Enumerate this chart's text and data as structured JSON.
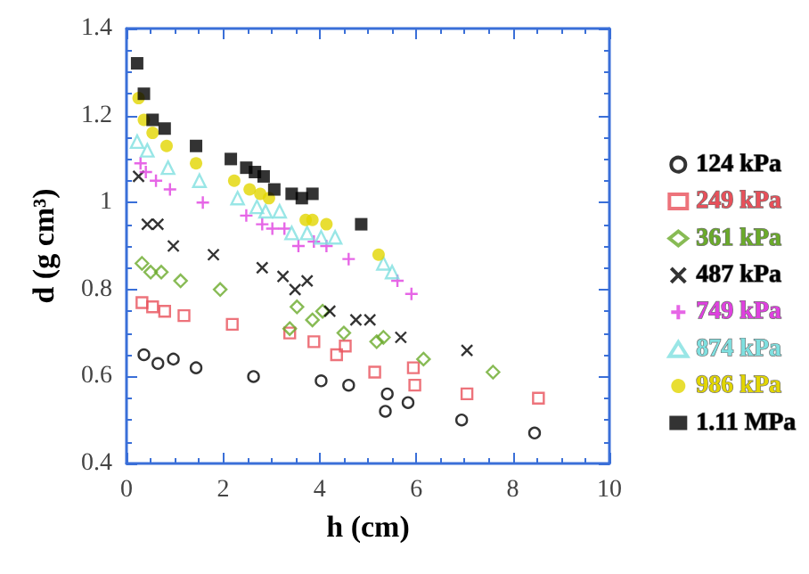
{
  "chart_data": {
    "type": "scatter",
    "xlabel": "h (cm)",
    "ylabel": "d (g cm³)",
    "xlim": [
      0,
      10
    ],
    "xticks": [
      0,
      2,
      4,
      6,
      8,
      10
    ],
    "ylim": [
      0.4,
      1.4
    ],
    "yticks": [
      0.4,
      0.6,
      0.8,
      1,
      1.2,
      1.4
    ],
    "grid": false,
    "legend": "right",
    "series": [
      {
        "name": "124 kPa",
        "color": "#000000",
        "marker": "circle-open",
        "x": [
          0.36,
          0.65,
          0.97,
          1.44,
          2.63,
          4.03,
          4.6,
          5.4,
          5.36,
          5.83,
          6.94,
          8.45
        ],
        "values": [
          0.65,
          0.63,
          0.64,
          0.62,
          0.6,
          0.59,
          0.58,
          0.56,
          0.52,
          0.54,
          0.5,
          0.47
        ]
      },
      {
        "name": "249 kPa",
        "color": "#e8505a",
        "marker": "square-open",
        "x": [
          0.32,
          0.54,
          0.79,
          1.19,
          2.19,
          3.38,
          3.88,
          4.35,
          4.53,
          5.14,
          5.94,
          5.97,
          7.05,
          8.53
        ],
        "values": [
          0.77,
          0.76,
          0.75,
          0.74,
          0.72,
          0.7,
          0.68,
          0.65,
          0.67,
          0.61,
          0.62,
          0.58,
          0.56,
          0.55
        ]
      },
      {
        "name": "361 kPa",
        "color": "#6aaa2a",
        "marker": "diamond-open",
        "x": [
          0.32,
          0.5,
          0.72,
          1.12,
          1.94,
          3.53,
          3.38,
          3.85,
          4.06,
          4.5,
          5.18,
          5.32,
          6.15,
          7.59
        ],
        "values": [
          0.86,
          0.84,
          0.84,
          0.82,
          0.8,
          0.76,
          0.71,
          0.73,
          0.75,
          0.7,
          0.68,
          0.69,
          0.64,
          0.61
        ]
      },
      {
        "name": "487 kPa",
        "color": "#000000",
        "marker": "x",
        "x": [
          0.25,
          0.43,
          0.65,
          0.97,
          1.8,
          2.81,
          3.24,
          3.49,
          3.74,
          4.21,
          4.75,
          5.04,
          5.68,
          7.05
        ],
        "values": [
          1.06,
          0.95,
          0.95,
          0.9,
          0.88,
          0.85,
          0.83,
          0.8,
          0.82,
          0.75,
          0.73,
          0.73,
          0.69,
          0.66
        ]
      },
      {
        "name": "749 kPa",
        "color": "#e040e0",
        "marker": "cross",
        "x": [
          0.29,
          0.4,
          0.61,
          0.9,
          1.58,
          2.48,
          2.81,
          3.02,
          3.27,
          3.56,
          3.88,
          4.14,
          4.6,
          5.61,
          5.9
        ],
        "values": [
          1.09,
          1.07,
          1.05,
          1.03,
          1.0,
          0.97,
          0.95,
          0.94,
          0.94,
          0.9,
          0.91,
          0.9,
          0.87,
          0.82,
          0.79
        ]
      },
      {
        "name": "874 kPa",
        "color": "#7fe0e0",
        "marker": "triangle-open",
        "x": [
          0.22,
          0.43,
          0.86,
          1.51,
          2.3,
          2.7,
          2.88,
          3.17,
          3.42,
          3.74,
          4.03,
          4.32,
          5.32,
          5.5
        ],
        "values": [
          1.14,
          1.12,
          1.08,
          1.05,
          1.01,
          0.99,
          0.98,
          0.98,
          0.93,
          0.93,
          0.92,
          0.92,
          0.86,
          0.84
        ]
      },
      {
        "name": "986 kPa",
        "color": "#e2d600",
        "marker": "circle",
        "x": [
          0.25,
          0.36,
          0.54,
          0.83,
          1.44,
          2.23,
          2.55,
          2.77,
          2.95,
          3.71,
          3.85,
          4.14,
          5.22
        ],
        "values": [
          1.24,
          1.19,
          1.16,
          1.13,
          1.09,
          1.05,
          1.03,
          1.02,
          1.01,
          0.96,
          0.96,
          0.95,
          0.88
        ]
      },
      {
        "name": "1.11 MPa",
        "color": "#000000",
        "marker": "square",
        "x": [
          0.22,
          0.36,
          0.54,
          0.79,
          1.44,
          2.16,
          2.48,
          2.66,
          2.84,
          3.06,
          3.42,
          3.63,
          3.85,
          4.86
        ],
        "values": [
          1.32,
          1.25,
          1.19,
          1.17,
          1.13,
          1.1,
          1.08,
          1.07,
          1.06,
          1.03,
          1.02,
          1.01,
          1.02,
          0.95
        ]
      }
    ]
  }
}
